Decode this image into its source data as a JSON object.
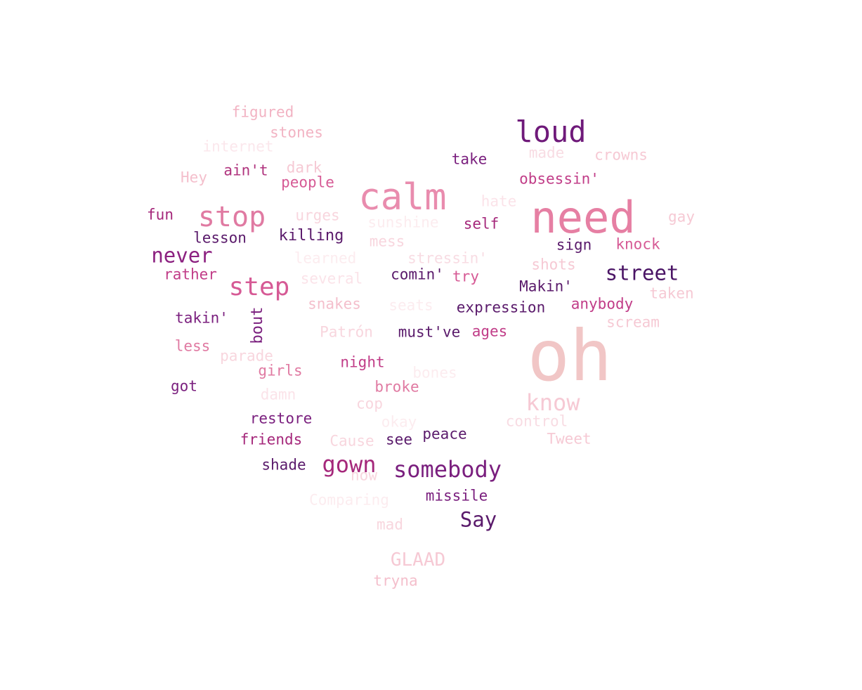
{
  "words": [
    {
      "text": "figured",
      "color": "#f2b3c3"
    },
    {
      "text": "stones",
      "color": "#f2b3c3"
    },
    {
      "text": "loud",
      "color": "#6f1a7a"
    },
    {
      "text": "internet",
      "color": "#fbe7ec"
    },
    {
      "text": "take",
      "color": "#7a1f7e"
    },
    {
      "text": "made",
      "color": "#f8dce3"
    },
    {
      "text": "crowns",
      "color": "#f6c9d4"
    },
    {
      "text": "ain't",
      "color": "#b0347e"
    },
    {
      "text": "dark",
      "color": "#f6c9d4"
    },
    {
      "text": "Hey",
      "color": "#f4bfcc"
    },
    {
      "text": "people",
      "color": "#d65a95"
    },
    {
      "text": "calm",
      "color": "#e98cae"
    },
    {
      "text": "obsessin'",
      "color": "#c13d88"
    },
    {
      "text": "hate",
      "color": "#fbe3e9"
    },
    {
      "text": "fun",
      "color": "#a5287b"
    },
    {
      "text": "stop",
      "color": "#e07aa2"
    },
    {
      "text": "urges",
      "color": "#f8d6de"
    },
    {
      "text": "need",
      "color": "#e67fa3"
    },
    {
      "text": "gay",
      "color": "#f6c9d4"
    },
    {
      "text": "sunshine",
      "color": "#fcecef"
    },
    {
      "text": "self",
      "color": "#a5287b"
    },
    {
      "text": "lesson",
      "color": "#5a1a6b"
    },
    {
      "text": "killing",
      "color": "#5a1a6b"
    },
    {
      "text": "mess",
      "color": "#f8d6de"
    },
    {
      "text": "sign",
      "color": "#5a1a6b"
    },
    {
      "text": "knock",
      "color": "#d65a95"
    },
    {
      "text": "never",
      "color": "#8c2180"
    },
    {
      "text": "learned",
      "color": "#fcecef"
    },
    {
      "text": "stressin'",
      "color": "#f8dce3"
    },
    {
      "text": "shots",
      "color": "#f6c9d4"
    },
    {
      "text": "rather",
      "color": "#c13d88"
    },
    {
      "text": "street",
      "color": "#4a1465"
    },
    {
      "text": "comin'",
      "color": "#5a1a6b"
    },
    {
      "text": "try",
      "color": "#d65a95"
    },
    {
      "text": "step",
      "color": "#d65a95"
    },
    {
      "text": "several",
      "color": "#fbe3e9"
    },
    {
      "text": "Makin'",
      "color": "#5a1a6b"
    },
    {
      "text": "taken",
      "color": "#f6c9d4"
    },
    {
      "text": "snakes",
      "color": "#f4bfcc"
    },
    {
      "text": "seats",
      "color": "#fcecef"
    },
    {
      "text": "expression",
      "color": "#5a1a6b"
    },
    {
      "text": "anybody",
      "color": "#c13d88"
    },
    {
      "text": "takin'",
      "color": "#7a1f7e"
    },
    {
      "text": "bout",
      "color": "#7a1f7e",
      "vertical": true
    },
    {
      "text": "scream",
      "color": "#f6c9d4"
    },
    {
      "text": "Patrón",
      "color": "#f8d6de"
    },
    {
      "text": "must've",
      "color": "#5a1a6b"
    },
    {
      "text": "ages",
      "color": "#c13d88"
    },
    {
      "text": "oh",
      "color": "#f1c6c6"
    },
    {
      "text": "less",
      "color": "#e07aa2"
    },
    {
      "text": "parade",
      "color": "#f8d6de"
    },
    {
      "text": "night",
      "color": "#c13d88"
    },
    {
      "text": "girls",
      "color": "#e07aa2"
    },
    {
      "text": "bones",
      "color": "#fcecef"
    },
    {
      "text": "got",
      "color": "#7a1f7e"
    },
    {
      "text": "damn",
      "color": "#fbe3e9"
    },
    {
      "text": "broke",
      "color": "#e07aa2"
    },
    {
      "text": "know",
      "color": "#f6c9d4"
    },
    {
      "text": "cop",
      "color": "#f8d6de"
    },
    {
      "text": "restore",
      "color": "#7a1f7e"
    },
    {
      "text": "okay",
      "color": "#fcecef"
    },
    {
      "text": "control",
      "color": "#f8dce3"
    },
    {
      "text": "friends",
      "color": "#a5287b"
    },
    {
      "text": "Cause",
      "color": "#f8d6de"
    },
    {
      "text": "see",
      "color": "#5a1a6b"
    },
    {
      "text": "peace",
      "color": "#5a1a6b"
    },
    {
      "text": "Tweet",
      "color": "#f6c9d4"
    },
    {
      "text": "shade",
      "color": "#5a1a6b"
    },
    {
      "text": "gown",
      "color": "#a5287b"
    },
    {
      "text": "now",
      "color": "#f8d6de"
    },
    {
      "text": "somebody",
      "color": "#7a1f7e"
    },
    {
      "text": "Comparing",
      "color": "#fcecef"
    },
    {
      "text": "missile",
      "color": "#7a1f7e"
    },
    {
      "text": "Say",
      "color": "#5a1a6b"
    },
    {
      "text": "mad",
      "color": "#f8d6de"
    },
    {
      "text": "GLAAD",
      "color": "#f6c9d4"
    },
    {
      "text": "tryna",
      "color": "#f4bfcc"
    }
  ]
}
